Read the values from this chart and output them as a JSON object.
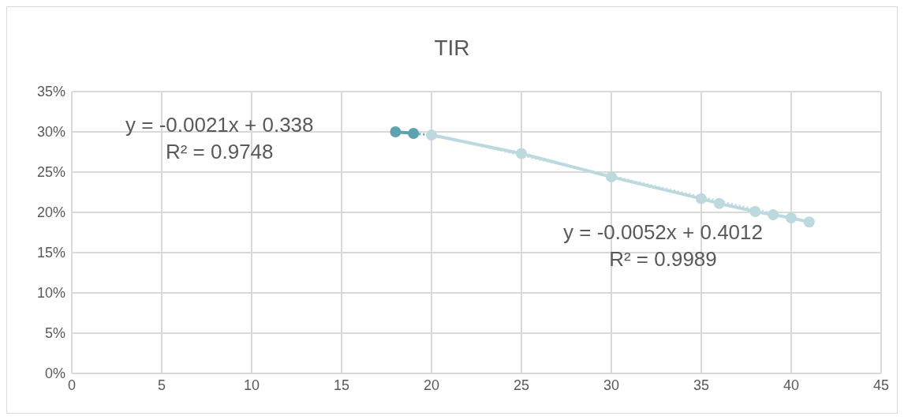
{
  "chart_data": {
    "type": "line",
    "title": "TIR",
    "series": [
      {
        "color": "#5ba3b0",
        "x": [
          18,
          19
        ],
        "values": [
          30.0,
          29.8
        ]
      },
      {
        "color": "#bcd9de",
        "x": [
          20,
          25,
          30,
          35,
          36,
          38,
          39,
          40,
          41
        ],
        "values": [
          29.6,
          27.3,
          24.4,
          21.7,
          21.1,
          20.1,
          19.7,
          19.3,
          18.8
        ]
      },
      {
        "color": "#5ba3b0",
        "x": [
          18,
          20
        ],
        "values": [
          30.0,
          29.6
        ],
        "marker": "none",
        "line_style": "dotted"
      },
      {
        "color": "#bcd9de",
        "x": [
          20,
          41
        ],
        "values": [
          29.7,
          18.8
        ],
        "marker": "none",
        "line_style": "dotted"
      }
    ],
    "xlim": [
      0,
      45
    ],
    "xticks": [
      0,
      5,
      10,
      15,
      20,
      25,
      30,
      35,
      40,
      45
    ],
    "ylim": [
      0,
      35
    ],
    "yticks": [
      {
        "value": 0,
        "label": "0%"
      },
      {
        "value": 5,
        "label": "5%"
      },
      {
        "value": 10,
        "label": "10%"
      },
      {
        "value": 15,
        "label": "15%"
      },
      {
        "value": 20,
        "label": "20%"
      },
      {
        "value": 25,
        "label": "25%"
      },
      {
        "value": 30,
        "label": "30%"
      },
      {
        "value": 35,
        "label": "35%"
      }
    ],
    "annotations": [
      "y = -0.0021x + 0.338\nR² = 0.9748",
      "y = -0.0052x + 0.4012\nR² = 0.9989"
    ],
    "grid": true,
    "marker": "circle",
    "line_style": "solid"
  }
}
